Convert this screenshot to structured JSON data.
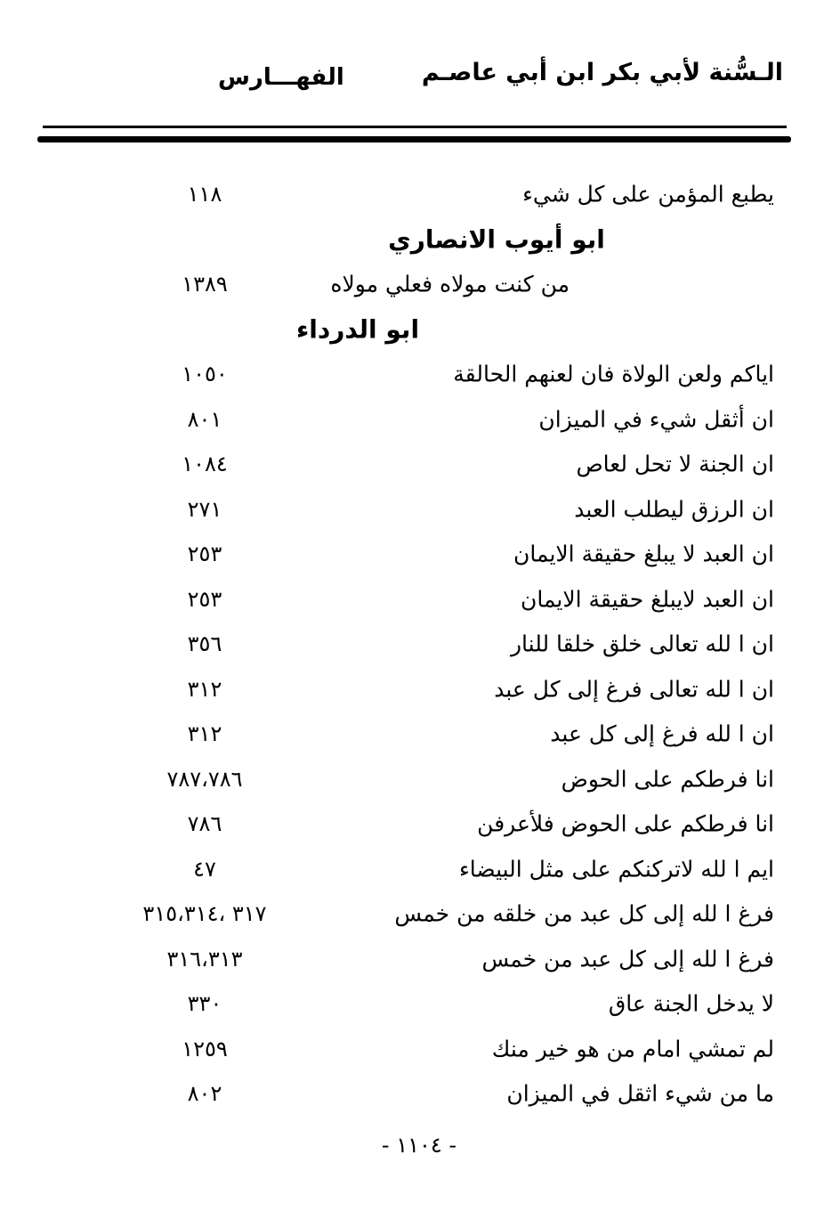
{
  "colors": {
    "ink": "#000000",
    "paper": "#ffffff"
  },
  "header": {
    "book_title": "الـسُّنة لأبي بكر ابن أبي عاصـم",
    "section_title": "الفهـــارس"
  },
  "index": {
    "rows": [
      {
        "type": "entry",
        "title": "يطبع المؤمن على كل شيء",
        "pages": "١١٨"
      },
      {
        "type": "heading",
        "title": "ابو أيوب الانصاري"
      },
      {
        "type": "entry",
        "title": "من كنت مولاه فعلي مولاه",
        "pages": "١٣٨٩",
        "indented": true
      },
      {
        "type": "heading",
        "title": "ابو الدرداء"
      },
      {
        "type": "entry",
        "title": "اياكم ولعن الولاة فان لعنهم الحالقة",
        "pages": "١٠٥٠"
      },
      {
        "type": "entry",
        "title": "ان أثقل شيء في الميزان",
        "pages": "٨٠١"
      },
      {
        "type": "entry",
        "title": "ان الجنة لا تحل لعاص",
        "pages": "١٠٨٤"
      },
      {
        "type": "entry",
        "title": "ان الرزق ليطلب العبد",
        "pages": "٢٧١"
      },
      {
        "type": "entry",
        "title": "ان العبد لا يبلغ حقيقة الايمان",
        "pages": "٢٥٣"
      },
      {
        "type": "entry",
        "title": "ان العبد لايبلغ حقيقة الايمان",
        "pages": "٢٥٣"
      },
      {
        "type": "entry",
        "title": "ان ا لله تعالى خلق خلقا للنار",
        "pages": "٣٥٦"
      },
      {
        "type": "entry",
        "title": "ان ا لله تعالى فرغ إلى كل عبد",
        "pages": "٣١٢"
      },
      {
        "type": "entry",
        "title": "ان ا لله فرغ إلى كل عبد",
        "pages": "٣١٢"
      },
      {
        "type": "entry",
        "title": "انا فرطكم على الحوض",
        "pages": "٧٨٧،٧٨٦"
      },
      {
        "type": "entry",
        "title": "انا فرطكم على الحوض فلأعرفن",
        "pages": "٧٨٦"
      },
      {
        "type": "entry",
        "title": "ايم ا لله لاتركنكم على مثل البيضاء",
        "pages": "٤٧"
      },
      {
        "type": "entry",
        "title": "فرغ ا لله إلى كل عبد من خلقه من خمس",
        "pages": "٣١٧ ،٣١٥،٣١٤"
      },
      {
        "type": "entry",
        "title": "فرغ ا لله إلى كل عبد من خمس",
        "pages": "٣١٦،٣١٣"
      },
      {
        "type": "entry",
        "title": "لا يدخل الجنة عاق",
        "pages": "٣٣٠"
      },
      {
        "type": "entry",
        "title": "لم تمشي امام من هو خير منك",
        "pages": "١٢٥٩"
      },
      {
        "type": "entry",
        "title": "ما من شيء اثقل في الميزان",
        "pages": "٨٠٢"
      }
    ]
  },
  "footer": {
    "page_number": "- ١١٠٤ -"
  }
}
